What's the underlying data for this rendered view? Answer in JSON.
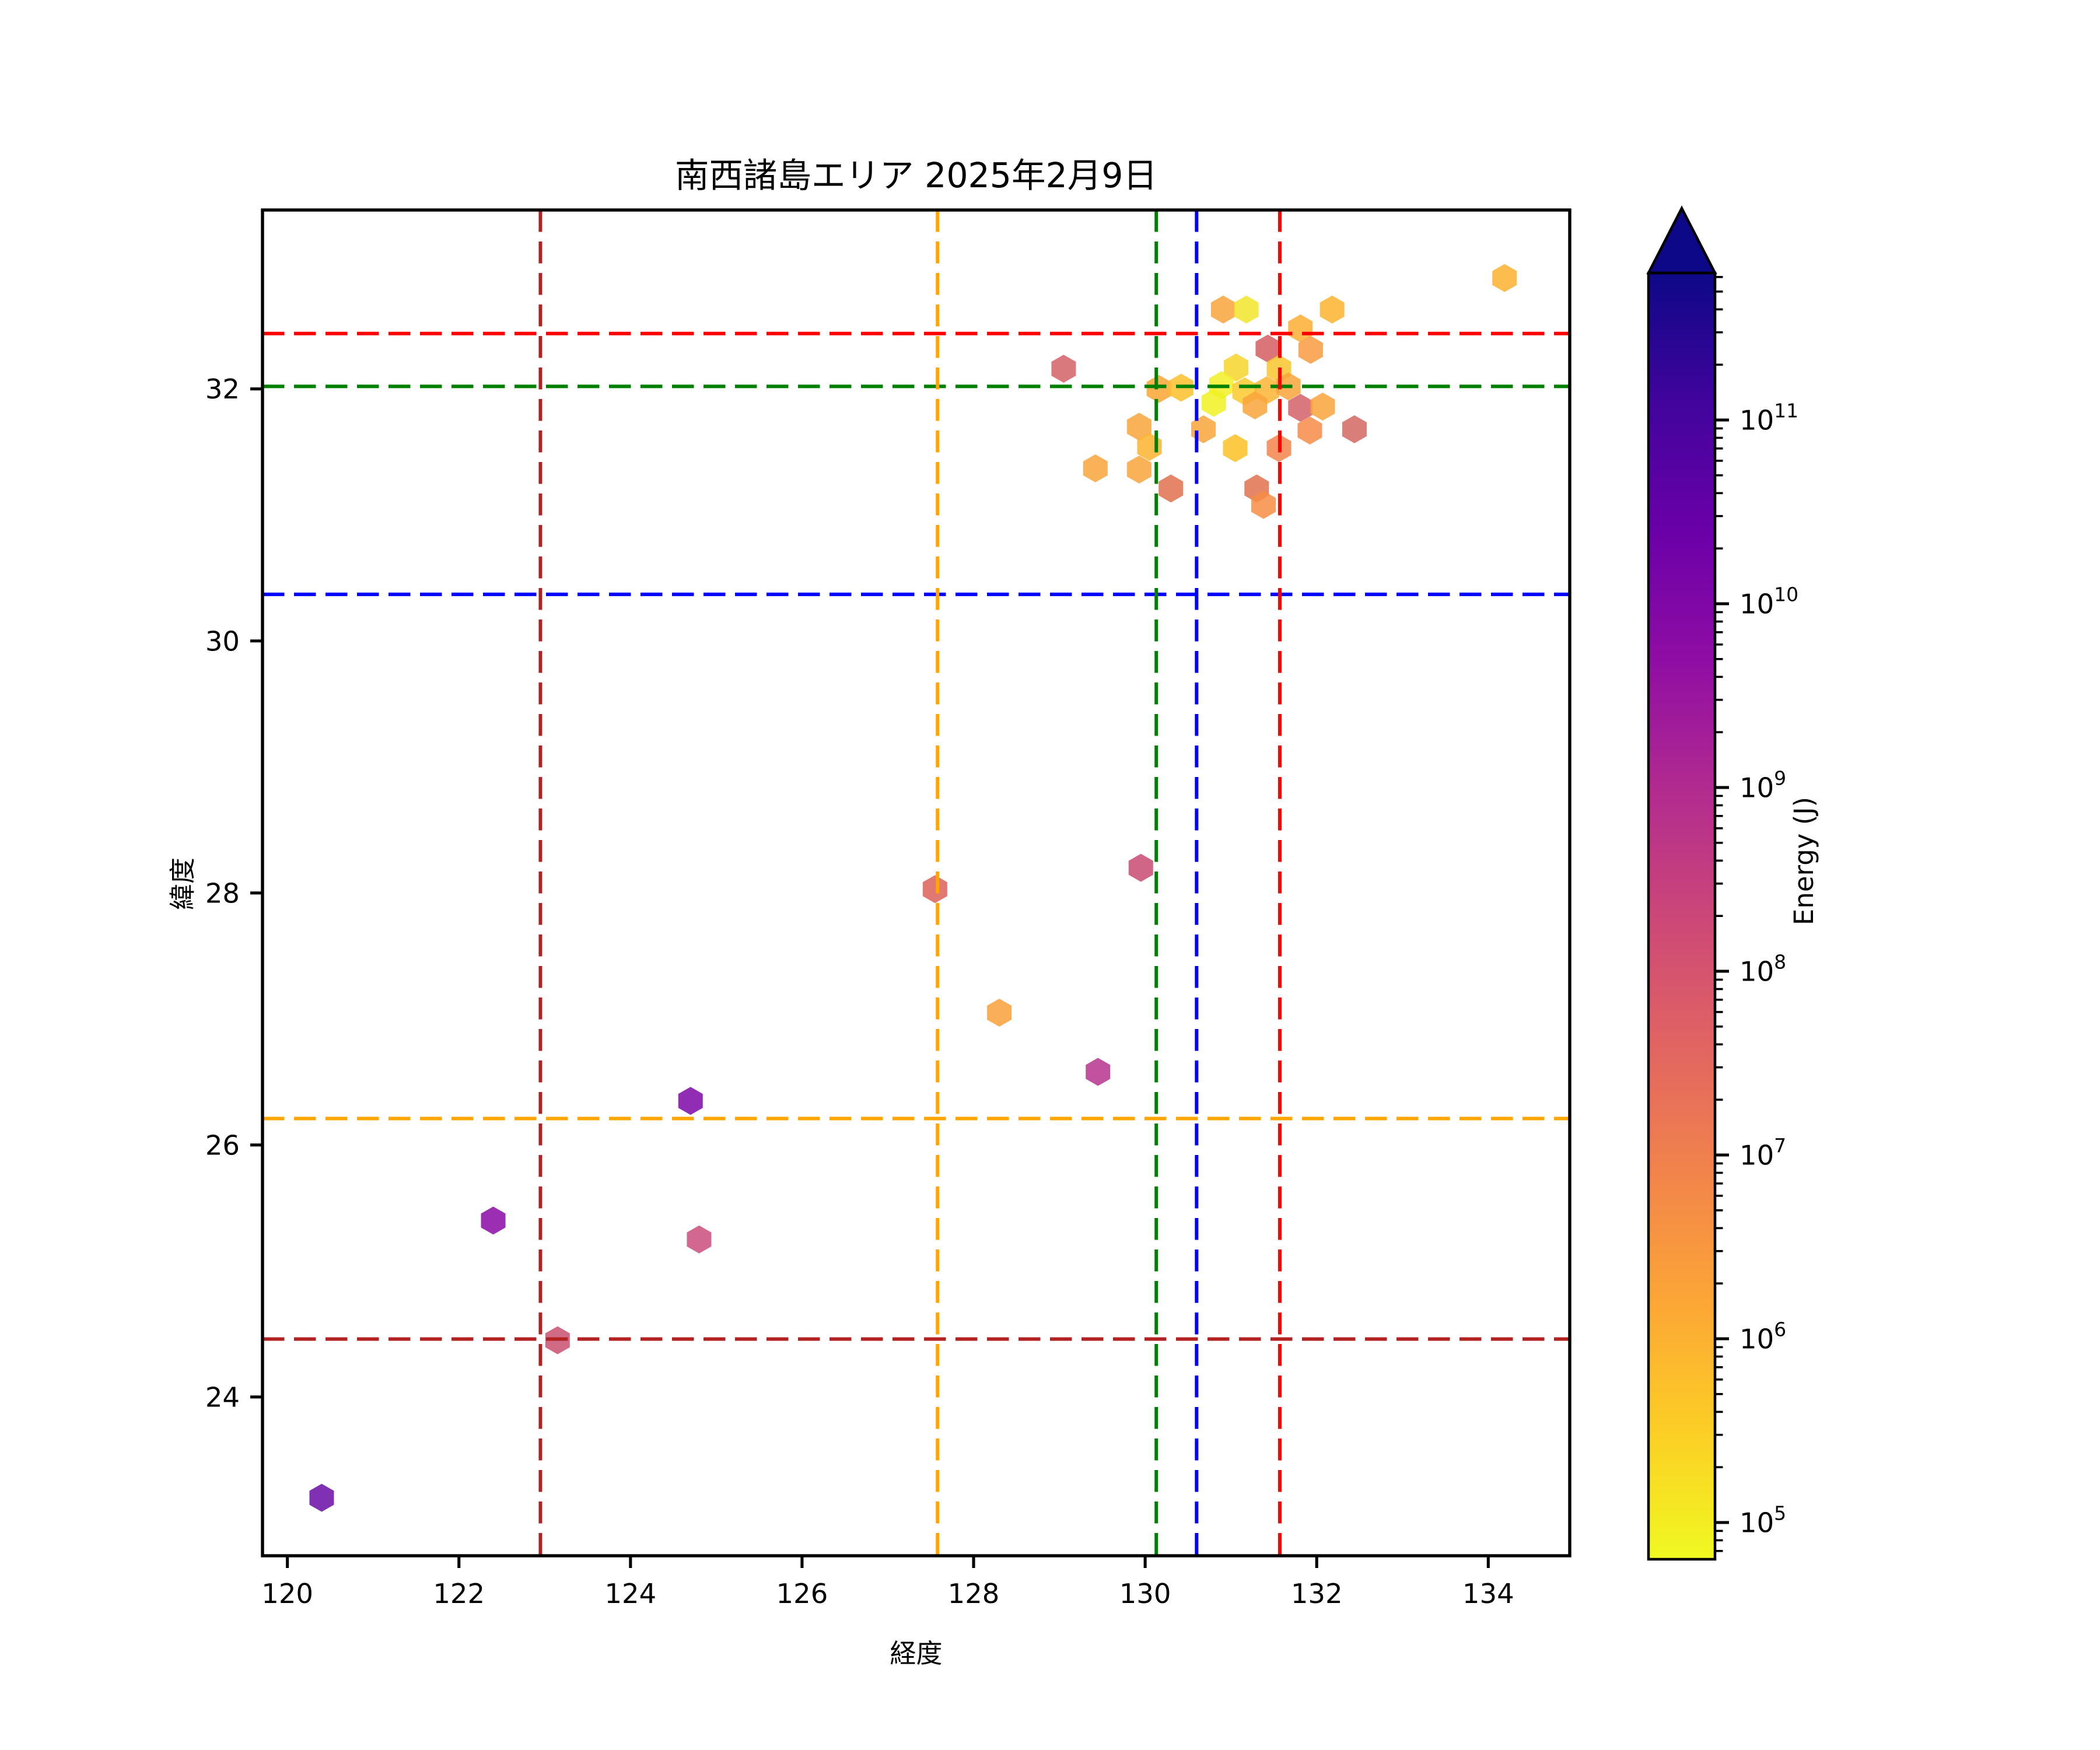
{
  "chart_data": {
    "type": "scatter",
    "marker": "hexagon",
    "marker_alpha": 0.85,
    "title": "南西諸島エリア 2025年2月9日",
    "xlabel": "経度",
    "ylabel": "緯度",
    "xlim": [
      119.71,
      134.95
    ],
    "ylim": [
      22.74,
      33.42
    ],
    "xticks": [
      "120",
      "122",
      "124",
      "126",
      "128",
      "130",
      "132",
      "134"
    ],
    "yticks": [
      "24",
      "26",
      "28",
      "30",
      "32"
    ],
    "grid": false,
    "legend": "none",
    "points": [
      {
        "lon": 120.4,
        "lat": 23.2,
        "energy_j": 25000000000.0,
        "color": "#6a0da6"
      },
      {
        "lon": 122.4,
        "lat": 25.4,
        "energy_j": 9000000000.0,
        "color": "#8a09a5"
      },
      {
        "lon": 123.15,
        "lat": 24.45,
        "energy_j": 200000000.0,
        "color": "#c9506f"
      },
      {
        "lon": 124.7,
        "lat": 26.35,
        "energy_j": 11000000000.0,
        "color": "#7e07a7"
      },
      {
        "lon": 124.8,
        "lat": 25.25,
        "energy_j": 230000000.0,
        "color": "#ca4d7c"
      },
      {
        "lon": 127.55,
        "lat": 28.03,
        "energy_j": 30000000.0,
        "color": "#d96259"
      },
      {
        "lon": 128.3,
        "lat": 27.05,
        "energy_j": 2000000.0,
        "color": "#f9a03a"
      },
      {
        "lon": 129.45,
        "lat": 26.58,
        "energy_j": 800000000.0,
        "color": "#b5348f"
      },
      {
        "lon": 129.95,
        "lat": 28.2,
        "energy_j": 280000000.0,
        "color": "#c84a72"
      },
      {
        "lon": 129.05,
        "lat": 32.16,
        "energy_j": 50000000.0,
        "color": "#d26066"
      },
      {
        "lon": 130.91,
        "lat": 32.63,
        "energy_j": 1900000.0,
        "color": "#f9a43b"
      },
      {
        "lon": 131.18,
        "lat": 32.63,
        "energy_j": 200000.0,
        "color": "#f2e52b"
      },
      {
        "lon": 132.18,
        "lat": 32.63,
        "energy_j": 800000.0,
        "color": "#fbb42f"
      },
      {
        "lon": 131.81,
        "lat": 32.48,
        "energy_j": 1000000.0,
        "color": "#fcae33"
      },
      {
        "lon": 131.93,
        "lat": 32.31,
        "energy_j": 3000000.0,
        "color": "#f89b40"
      },
      {
        "lon": 131.43,
        "lat": 32.32,
        "energy_j": 43000000.0,
        "color": "#d45d62"
      },
      {
        "lon": 131.06,
        "lat": 32.17,
        "energy_j": 300000.0,
        "color": "#f6d52b"
      },
      {
        "lon": 131.56,
        "lat": 32.16,
        "energy_j": 500000.0,
        "color": "#f8c52d"
      },
      {
        "lon": 130.89,
        "lat": 32.03,
        "energy_j": 120000.0,
        "color": "#f2ee27"
      },
      {
        "lon": 131.16,
        "lat": 31.98,
        "energy_j": 500000.0,
        "color": "#fbc92b"
      },
      {
        "lon": 131.42,
        "lat": 31.99,
        "energy_j": 900000.0,
        "color": "#fcb433"
      },
      {
        "lon": 131.67,
        "lat": 32.02,
        "energy_j": 1900000.0,
        "color": "#f9a43b"
      },
      {
        "lon": 130.16,
        "lat": 32.0,
        "energy_j": 1900000.0,
        "color": "#faa634"
      },
      {
        "lon": 130.42,
        "lat": 32.01,
        "energy_j": 700000.0,
        "color": "#fbc02c"
      },
      {
        "lon": 130.8,
        "lat": 31.89,
        "energy_j": 100000.0,
        "color": "#f0f122"
      },
      {
        "lon": 131.28,
        "lat": 31.87,
        "energy_j": 1900000.0,
        "color": "#f9a43b"
      },
      {
        "lon": 131.81,
        "lat": 31.85,
        "energy_j": 43000000.0,
        "color": "#d4606a"
      },
      {
        "lon": 132.07,
        "lat": 31.86,
        "energy_j": 1900000.0,
        "color": "#f9a43b"
      },
      {
        "lon": 129.93,
        "lat": 31.7,
        "energy_j": 1900000.0,
        "color": "#f9a43c"
      },
      {
        "lon": 130.68,
        "lat": 31.68,
        "energy_j": 1900000.0,
        "color": "#f9a43c"
      },
      {
        "lon": 132.44,
        "lat": 31.68,
        "energy_j": 40000000.0,
        "color": "#d26762"
      },
      {
        "lon": 131.92,
        "lat": 31.67,
        "energy_j": 5000000.0,
        "color": "#f68b46"
      },
      {
        "lon": 130.05,
        "lat": 31.54,
        "energy_j": 700000.0,
        "color": "#fbb42e"
      },
      {
        "lon": 131.05,
        "lat": 31.53,
        "energy_j": 500000.0,
        "color": "#fcc125"
      },
      {
        "lon": 131.56,
        "lat": 31.53,
        "energy_j": 8000000.0,
        "color": "#f2844b"
      },
      {
        "lon": 129.42,
        "lat": 31.37,
        "energy_j": 1900000.0,
        "color": "#f9a43c"
      },
      {
        "lon": 129.93,
        "lat": 31.36,
        "energy_j": 1900000.0,
        "color": "#f9a43c"
      },
      {
        "lon": 130.3,
        "lat": 31.21,
        "energy_j": 15000000.0,
        "color": "#e0714e"
      },
      {
        "lon": 131.3,
        "lat": 31.21,
        "energy_j": 15000000.0,
        "color": "#e0714e"
      },
      {
        "lon": 131.38,
        "lat": 31.08,
        "energy_j": 5000000.0,
        "color": "#f68d44"
      },
      {
        "lon": 134.19,
        "lat": 32.88,
        "energy_j": 1000000.0,
        "color": "#fbb02f"
      }
    ],
    "reference_lines": {
      "horizontal": [
        {
          "lat": 32.44,
          "color": "#ff0000"
        },
        {
          "lat": 32.02,
          "color": "#008000"
        },
        {
          "lat": 30.37,
          "color": "#0000ff"
        },
        {
          "lat": 26.21,
          "color": "#ffa500"
        },
        {
          "lat": 24.46,
          "color": "#b22222"
        }
      ],
      "vertical": [
        {
          "lon": 122.95,
          "color": "#b22222"
        },
        {
          "lon": 127.58,
          "color": "#ffa500"
        },
        {
          "lon": 130.13,
          "color": "#008000"
        },
        {
          "lon": 130.6,
          "color": "#0000ff"
        },
        {
          "lon": 131.57,
          "color": "#ff0000"
        }
      ]
    },
    "colorbar": {
      "label": "Energy (J)",
      "scale": "log",
      "tick_exponents": [
        5,
        6,
        7,
        8,
        9,
        10,
        11
      ],
      "range_exponents": [
        4.8,
        11.8
      ],
      "extend": "max",
      "colormap": "plasma_reversed",
      "gradient_top_to_bottom": [
        "#0d0887",
        "#41049d",
        "#6a00a8",
        "#8f0da4",
        "#b12a90",
        "#cc4778",
        "#e16462",
        "#f2844b",
        "#fca636",
        "#fcce25",
        "#f0f921"
      ]
    }
  }
}
